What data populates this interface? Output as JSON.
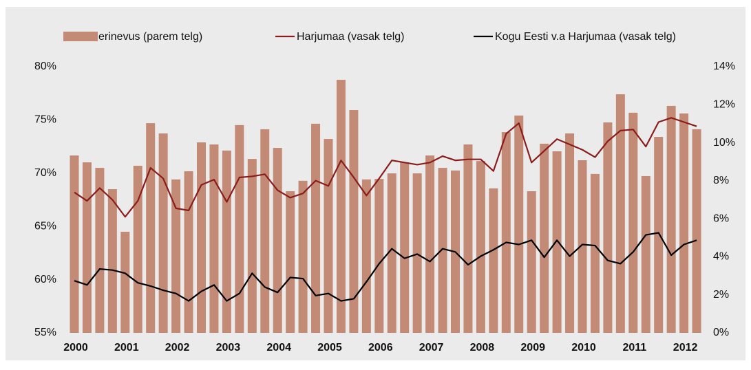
{
  "chart_data": {
    "type": "bar",
    "categories": [
      "2000",
      null,
      null,
      null,
      "2001",
      null,
      null,
      null,
      "2002",
      null,
      null,
      null,
      "2003",
      null,
      null,
      null,
      "2004",
      null,
      null,
      null,
      "2005",
      null,
      null,
      null,
      "2006",
      null,
      null,
      null,
      "2007",
      null,
      null,
      null,
      "2008",
      null,
      null,
      null,
      "2009",
      null,
      null,
      null,
      "2010",
      null,
      null,
      null,
      "2011",
      null,
      null,
      null,
      "2012",
      null
    ],
    "series": [
      {
        "name": "erinevus (parem telg)",
        "type": "bar",
        "axis": "y2",
        "color": "#c38b75",
        "values": [
          9.33,
          8.97,
          8.68,
          7.56,
          5.32,
          8.79,
          11.03,
          10.49,
          8.07,
          8.5,
          10.02,
          9.91,
          9.59,
          10.93,
          9.15,
          10.71,
          9.73,
          7.45,
          8.0,
          11.0,
          10.2,
          13.31,
          11.72,
          8.07,
          8.1,
          8.39,
          8.97,
          8.39,
          9.33,
          8.68,
          8.54,
          9.91,
          9.04,
          7.6,
          10.56,
          11.43,
          7.45,
          9.95,
          9.55,
          10.49,
          9.08,
          8.36,
          11.07,
          12.55,
          11.58,
          8.25,
          10.31,
          11.94,
          11.54,
          10.71
        ]
      },
      {
        "name": "Harjumaa (vasak telg)",
        "type": "line",
        "axis": "y",
        "color": "#8b1c1c",
        "values": [
          68.2,
          67.4,
          68.6,
          67.5,
          65.9,
          67.4,
          70.5,
          69.5,
          66.7,
          66.5,
          68.9,
          69.4,
          67.3,
          69.6,
          69.7,
          69.9,
          68.4,
          67.7,
          68.1,
          69.3,
          68.8,
          71.2,
          69.6,
          67.9,
          69.5,
          71.2,
          71.0,
          70.8,
          71.0,
          71.6,
          71.2,
          71.3,
          71.3,
          70.2,
          73.7,
          74.7,
          71.0,
          72.1,
          73.2,
          72.7,
          72.2,
          71.5,
          73.0,
          74.0,
          74.1,
          72.5,
          74.8,
          75.2,
          74.8,
          74.4
        ]
      },
      {
        "name": "Kogu Eesti v.a Harjumaa (vasak telg)",
        "type": "line",
        "axis": "y",
        "color": "#000000",
        "values": [
          59.9,
          59.5,
          61.0,
          60.9,
          60.6,
          59.7,
          59.4,
          59.0,
          58.7,
          58.0,
          58.9,
          59.5,
          58.0,
          58.7,
          60.6,
          59.3,
          58.8,
          60.2,
          60.1,
          58.5,
          58.7,
          58.0,
          58.2,
          59.8,
          61.5,
          62.9,
          62.0,
          62.4,
          61.7,
          62.9,
          62.6,
          61.4,
          62.2,
          62.8,
          63.5,
          63.3,
          63.7,
          62.1,
          63.7,
          62.2,
          63.3,
          63.2,
          61.8,
          61.5,
          62.6,
          64.2,
          64.4,
          62.3,
          63.3,
          63.7
        ]
      }
    ],
    "ylim": [
      55,
      80
    ],
    "yticks": [
      {
        "value": 55,
        "label": "55%"
      },
      {
        "value": 60,
        "label": "60%"
      },
      {
        "value": 65,
        "label": "65%"
      },
      {
        "value": 70,
        "label": "70%"
      },
      {
        "value": 75,
        "label": "75%"
      },
      {
        "value": 80,
        "label": "80%"
      }
    ],
    "y2lim": [
      0,
      14
    ],
    "y2ticks": [
      {
        "value": 0,
        "label": "0%"
      },
      {
        "value": 2,
        "label": "2%"
      },
      {
        "value": 4,
        "label": "4%"
      },
      {
        "value": 6,
        "label": "6%"
      },
      {
        "value": 8,
        "label": "8%"
      },
      {
        "value": 10,
        "label": "10%"
      },
      {
        "value": 12,
        "label": "12%"
      },
      {
        "value": 14,
        "label": "14%"
      }
    ],
    "legend": "top",
    "grid": false
  }
}
